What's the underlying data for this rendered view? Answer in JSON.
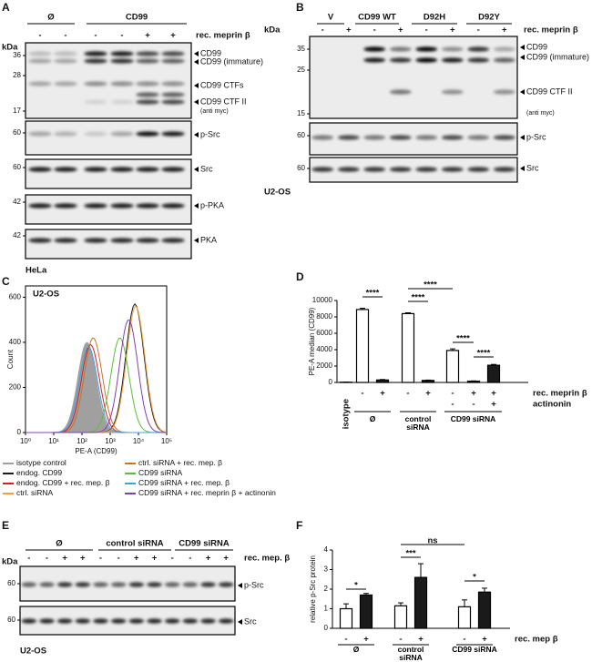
{
  "panels": {
    "A": {
      "letter": "A",
      "groups": [
        "Ø",
        "CD99"
      ],
      "signs": [
        "-",
        "-",
        "-",
        "-",
        "+",
        "+"
      ],
      "treatment": "rec. meprin β",
      "kda": "kDa",
      "blots": [
        {
          "markers": [
            36,
            28,
            17
          ],
          "labels": [
            "CD99",
            "CD99 (immature)",
            "CD99 CTFs",
            "CD99 CTF II"
          ],
          "note": "(anti myc)"
        },
        {
          "markers": [
            60
          ],
          "labels": [
            "p-Src"
          ]
        },
        {
          "markers": [
            60
          ],
          "labels": [
            "Src"
          ]
        },
        {
          "markers": [
            42
          ],
          "labels": [
            "p-PKA"
          ]
        },
        {
          "markers": [
            42
          ],
          "labels": [
            "PKA"
          ]
        }
      ],
      "cell_line": "HeLa"
    },
    "B": {
      "letter": "B",
      "groups": [
        "V",
        "CD99 WT",
        "D92H",
        "D92Y"
      ],
      "signs": [
        "-",
        "+",
        "-",
        "+",
        "-",
        "+",
        "-",
        "+"
      ],
      "treatment": "rec. meprin β",
      "kda": "kDa",
      "blots": [
        {
          "markers": [
            35,
            25,
            15
          ],
          "labels": [
            "CD99",
            "CD99 (immature)",
            "CD99 CTF II"
          ],
          "note": "(anti myc)"
        },
        {
          "markers": [
            60
          ],
          "labels": [
            "p-Src"
          ]
        },
        {
          "markers": [
            60
          ],
          "labels": [
            "Src"
          ]
        }
      ],
      "cell_line": "U2-OS"
    },
    "C": {
      "letter": "C",
      "cell_line": "U2-OS"
    },
    "D": {
      "letter": "D"
    },
    "E": {
      "letter": "E",
      "groups": [
        "Ø",
        "control siRNA",
        "CD99 siRNA"
      ],
      "signs": [
        "-",
        "-",
        "+",
        "+",
        "-",
        "-",
        "+",
        "+",
        "-",
        "-",
        "+",
        "+"
      ],
      "treatment": "rec. mep. β",
      "kda": "kDa",
      "blots": [
        {
          "markers": [
            60
          ],
          "labels": [
            "p-Src"
          ]
        },
        {
          "markers": [
            60
          ],
          "labels": [
            "Src"
          ]
        }
      ],
      "cell_line": "U2-OS"
    },
    "F": {
      "letter": "F"
    }
  },
  "chart_data": [
    {
      "type": "density",
      "xlabel": "PE-A (CD99)",
      "ylabel": "Count",
      "log_x": true,
      "xlim": [
        1,
        100000
      ],
      "xticks": [
        {
          "value": 1,
          "label": "10⁰"
        },
        {
          "value": 10,
          "label": "10¹"
        },
        {
          "value": 100,
          "label": "10²"
        },
        {
          "value": 1000,
          "label": "10³"
        },
        {
          "value": 10000,
          "label": "10⁴"
        },
        {
          "value": 100000,
          "label": "10⁵"
        }
      ],
      "ylim": [
        0,
        650
      ],
      "yticks": [
        0,
        200,
        400,
        600
      ],
      "series": [
        {
          "name": "isotype control",
          "color": "#a0a0a0",
          "filled": true,
          "peak": 150,
          "height": 400
        },
        {
          "name": "endog. CD99",
          "color": "#1a1a1a",
          "peak": 7500,
          "height": 570
        },
        {
          "name": "endog. CD99 + rec. mep. β",
          "color": "#d62020",
          "peak": 200,
          "height": 390
        },
        {
          "name": "ctrl. siRNA",
          "color": "#f0a040",
          "peak": 8000,
          "height": 560
        },
        {
          "name": "ctrl. siRNA + rec. mep. β",
          "color": "#c8742a",
          "peak": 250,
          "height": 420
        },
        {
          "name": "CD99 siRNA",
          "color": "#5cbf3a",
          "peak": 2200,
          "height": 420
        },
        {
          "name": "CD99 siRNA + rec. mep. β",
          "color": "#3fa0e0",
          "peak": 170,
          "height": 380
        },
        {
          "name": "CD99 siRNA + rec. meprin β + actinonin",
          "color": "#8040b0",
          "peak": 4500,
          "height": 500
        }
      ]
    },
    {
      "type": "bar",
      "ylabel": "PE-A median (CD99)",
      "ylim": [
        0,
        10000
      ],
      "yticks": [
        0,
        2000,
        4000,
        6000,
        8000,
        10000
      ],
      "categories": [
        "isotype",
        null,
        null,
        null,
        null,
        null,
        null,
        null
      ],
      "values": [
        30,
        8900,
        300,
        8400,
        250,
        3900,
        150,
        2100
      ],
      "errors": [
        20,
        150,
        60,
        100,
        40,
        200,
        40,
        100
      ],
      "colors": [
        "#ffffff",
        "#ffffff",
        "#1a1a1a",
        "#ffffff",
        "#1a1a1a",
        "#ffffff",
        "#1a1a1a",
        "#1a1a1a"
      ],
      "sign_rows": [
        {
          "name": "rec. meprin β",
          "signs": [
            "-",
            "+",
            "-",
            "+",
            "-",
            "+",
            "+"
          ]
        },
        {
          "name": "actinonin",
          "signs": [
            "-",
            "-",
            "+"
          ]
        }
      ],
      "groups": [
        "Ø",
        "control siRNA",
        "CD99 siRNA"
      ],
      "significance": [
        "****",
        "****",
        "****",
        "****",
        "****"
      ]
    },
    {
      "type": "bar",
      "ylabel": "relative p-Src protein",
      "ylim": [
        0,
        4
      ],
      "yticks": [
        0,
        1,
        2,
        3,
        4
      ],
      "values": [
        1.0,
        1.7,
        1.15,
        2.6,
        1.1,
        1.85
      ],
      "errors": [
        0.25,
        0.08,
        0.15,
        0.7,
        0.35,
        0.2
      ],
      "colors": [
        "#ffffff",
        "#1a1a1a",
        "#ffffff",
        "#1a1a1a",
        "#ffffff",
        "#1a1a1a"
      ],
      "sign_rows": [
        {
          "name": "rec. mep β",
          "signs": [
            "-",
            "+",
            "-",
            "+",
            "-",
            "+"
          ]
        }
      ],
      "groups": [
        "Ø",
        "control siRNA",
        "CD99 siRNA"
      ],
      "significance": [
        "*",
        "***",
        "ns",
        "*"
      ]
    }
  ]
}
